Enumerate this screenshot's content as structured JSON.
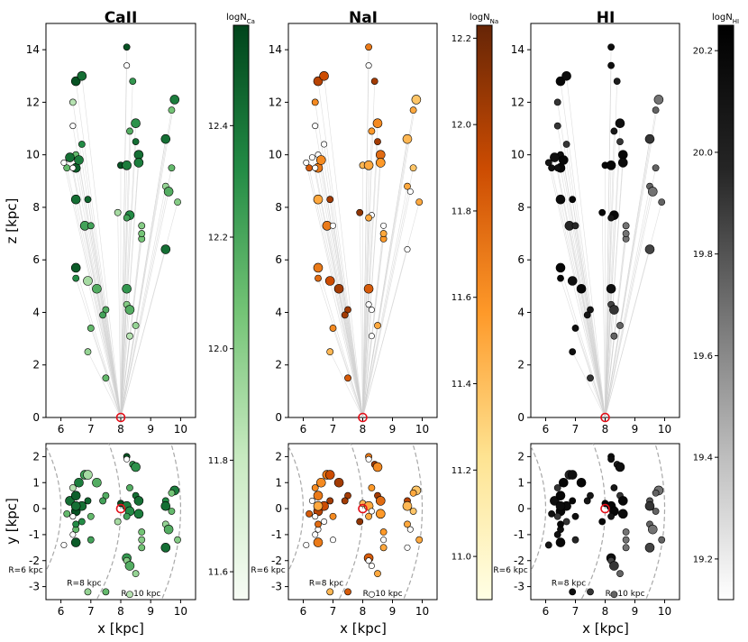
{
  "figure": {
    "x_axis_label": "x [kpc]",
    "z_axis_label": "z [kpc]",
    "y_axis_label": "y [kpc]"
  },
  "chart_data": {
    "type": "scatter",
    "panels": [
      {
        "title": "CaII",
        "colorbar_label": "logN",
        "colorbar_subscript": "Ca",
        "colorbar_range": [
          11.55,
          12.58
        ],
        "colorbar_ticks": [
          11.6,
          11.8,
          12.0,
          12.2,
          12.4
        ],
        "colormap_stops": [
          "#f7fcf5",
          "#c7e9c0",
          "#74c476",
          "#238b45",
          "#00441b"
        ]
      },
      {
        "title": "NaI",
        "colorbar_label": "logN",
        "colorbar_subscript": "Na",
        "colorbar_range": [
          10.9,
          12.23
        ],
        "colorbar_ticks": [
          11.0,
          11.2,
          11.4,
          11.6,
          11.8,
          12.0,
          12.2
        ],
        "colormap_stops": [
          "#ffffe5",
          "#fee391",
          "#fe9929",
          "#cc4c02",
          "#662506"
        ]
      },
      {
        "title": "HI",
        "colorbar_label": "logN",
        "colorbar_subscript": "HI",
        "colorbar_range": [
          19.12,
          20.25
        ],
        "colorbar_ticks": [
          19.2,
          19.4,
          19.6,
          19.8,
          20.0,
          20.2
        ],
        "colormap_stops": [
          "#ffffff",
          "#bdbdbd",
          "#737373",
          "#252525",
          "#000000"
        ]
      }
    ],
    "top_axes": {
      "x_range": [
        5.5,
        10.5
      ],
      "z_range": [
        0,
        15
      ],
      "x_ticks": [
        6,
        7,
        8,
        9,
        10
      ],
      "z_ticks": [
        0,
        2,
        4,
        6,
        8,
        10,
        12,
        14
      ]
    },
    "bottom_axes": {
      "x_range": [
        5.5,
        10.5
      ],
      "y_range": [
        -3.5,
        2.5
      ],
      "x_ticks": [
        6,
        7,
        8,
        9,
        10
      ],
      "y_ticks": [
        -3,
        -2,
        -1,
        0,
        1,
        2
      ]
    },
    "sun_position": {
      "x": 8.0,
      "y": 0.0,
      "z": 0.0
    },
    "galactocentric_rings": [
      {
        "radius_kpc": 6,
        "label": "R=6 kpc"
      },
      {
        "radius_kpc": 8,
        "label": "R=8 kpc"
      },
      {
        "radius_kpc": 10,
        "label": "R=10 kpc"
      }
    ],
    "sightlines": [
      {
        "x": 6.5,
        "y": -0.1,
        "z": 12.8,
        "ca": 0.95,
        "na": 0.8,
        "hi": 0.95,
        "s": 1
      },
      {
        "x": 6.7,
        "y": 0.1,
        "z": 13.0,
        "ca": 0.85,
        "na": 0.75,
        "hi": 0.92,
        "s": 1
      },
      {
        "x": 6.4,
        "y": 0.8,
        "z": 12.0,
        "ca": 0.3,
        "na": 0.55,
        "hi": 0.7,
        "s": 0
      },
      {
        "x": 6.4,
        "y": -0.3,
        "z": 11.1,
        "ca": -1,
        "na": -1,
        "hi": 0.7,
        "s": 0
      },
      {
        "x": 6.5,
        "y": -0.8,
        "z": 10.0,
        "ca": 0.55,
        "na": -1,
        "hi": 0.9,
        "s": 0
      },
      {
        "x": 6.7,
        "y": -0.5,
        "z": 10.4,
        "ca": 0.75,
        "na": -1,
        "hi": 0.7,
        "s": 0
      },
      {
        "x": 6.3,
        "y": 0.3,
        "z": 9.9,
        "ca": 0.85,
        "na": -1,
        "hi": 0.9,
        "s": 1
      },
      {
        "x": 6.5,
        "y": 0.5,
        "z": 9.5,
        "ca": 0.9,
        "na": 0.6,
        "hi": 0.95,
        "s": 1
      },
      {
        "x": 6.4,
        "y": -1.0,
        "z": 9.5,
        "ca": -1,
        "na": -1,
        "hi": 0.9,
        "s": 0
      },
      {
        "x": 6.2,
        "y": -0.2,
        "z": 9.5,
        "ca": 0.55,
        "na": 0.7,
        "hi": 0.9,
        "s": 0
      },
      {
        "x": 6.6,
        "y": 1.0,
        "z": 9.8,
        "ca": 0.8,
        "na": 0.55,
        "hi": 0.95,
        "s": 1
      },
      {
        "x": 6.1,
        "y": -1.4,
        "z": 9.7,
        "ca": -1,
        "na": -1,
        "hi": 0.85,
        "s": 0
      },
      {
        "x": 6.5,
        "y": 0.1,
        "z": 8.3,
        "ca": 0.85,
        "na": 0.45,
        "hi": 0.92,
        "s": 1
      },
      {
        "x": 6.9,
        "y": 0.3,
        "z": 8.3,
        "ca": 0.88,
        "na": 0.85,
        "hi": 0.95,
        "s": 0
      },
      {
        "x": 6.8,
        "y": 1.3,
        "z": 7.3,
        "ca": 0.65,
        "na": 0.6,
        "hi": 0.75,
        "s": 1
      },
      {
        "x": 7.0,
        "y": -1.2,
        "z": 7.3,
        "ca": 0.65,
        "na": -1,
        "hi": 0.75,
        "s": 0
      },
      {
        "x": 6.5,
        "y": -1.3,
        "z": 5.7,
        "ca": 0.92,
        "na": 0.6,
        "hi": 0.95,
        "s": 1
      },
      {
        "x": 6.5,
        "y": -0.6,
        "z": 5.3,
        "ca": 0.75,
        "na": 0.65,
        "hi": 0.95,
        "s": 0
      },
      {
        "x": 6.9,
        "y": 1.3,
        "z": 5.2,
        "ca": 0.35,
        "na": 0.75,
        "hi": 0.9,
        "s": 1
      },
      {
        "x": 7.2,
        "y": 1.0,
        "z": 4.9,
        "ca": 0.6,
        "na": 0.85,
        "hi": 0.95,
        "s": 1
      },
      {
        "x": 7.5,
        "y": 0.5,
        "z": 4.1,
        "ca": 0.6,
        "na": 0.85,
        "hi": 0.85,
        "s": 0
      },
      {
        "x": 7.4,
        "y": 0.3,
        "z": 3.9,
        "ca": 0.65,
        "na": 0.85,
        "hi": 0.85,
        "s": 0
      },
      {
        "x": 7.0,
        "y": -0.3,
        "z": 3.4,
        "ca": 0.55,
        "na": 0.55,
        "hi": 0.9,
        "s": 0
      },
      {
        "x": 8.2,
        "y": 2.0,
        "z": 14.1,
        "ca": 0.95,
        "na": 0.6,
        "hi": 0.9,
        "s": 0
      },
      {
        "x": 8.2,
        "y": 1.9,
        "z": 13.4,
        "ca": -1,
        "na": -1,
        "hi": 0.9,
        "s": 0
      },
      {
        "x": 8.4,
        "y": 1.7,
        "z": 12.8,
        "ca": 0.7,
        "na": 0.85,
        "hi": 0.8,
        "s": 0
      },
      {
        "x": 8.5,
        "y": 1.6,
        "z": 11.2,
        "ca": 0.72,
        "na": 0.55,
        "hi": 0.9,
        "s": 1
      },
      {
        "x": 8.3,
        "y": 0.8,
        "z": 10.9,
        "ca": 0.6,
        "na": 0.5,
        "hi": 0.85,
        "s": 0
      },
      {
        "x": 8.5,
        "y": 0.5,
        "z": 10.5,
        "ca": 0.85,
        "na": 0.85,
        "hi": 0.7,
        "s": 0
      },
      {
        "x": 8.6,
        "y": 0.3,
        "z": 10.0,
        "ca": 0.85,
        "na": 0.65,
        "hi": 0.95,
        "s": 1
      },
      {
        "x": 8.6,
        "y": -0.2,
        "z": 9.7,
        "ca": 0.8,
        "na": 0.5,
        "hi": 0.92,
        "s": 1
      },
      {
        "x": 8.0,
        "y": 0.2,
        "z": 9.6,
        "ca": 0.95,
        "na": 0.4,
        "hi": 0.95,
        "s": 0
      },
      {
        "x": 8.2,
        "y": 0.1,
        "z": 9.6,
        "ca": 0.8,
        "na": 0.45,
        "hi": 0.95,
        "s": 1
      },
      {
        "x": 8.3,
        "y": -0.1,
        "z": 7.7,
        "ca": 0.75,
        "na": -1,
        "hi": 0.95,
        "s": 1
      },
      {
        "x": 8.2,
        "y": -0.3,
        "z": 7.6,
        "ca": 0.65,
        "na": 0.45,
        "hi": 0.85,
        "s": 0
      },
      {
        "x": 7.9,
        "y": -0.5,
        "z": 7.8,
        "ca": 0.35,
        "na": 0.9,
        "hi": 0.95,
        "s": 0
      },
      {
        "x": 8.7,
        "y": -1.2,
        "z": 7.3,
        "ca": 0.45,
        "na": -1,
        "hi": 0.5,
        "s": 0
      },
      {
        "x": 8.7,
        "y": -0.9,
        "z": 6.8,
        "ca": 0.5,
        "na": 0.5,
        "hi": 0.5,
        "s": 0
      },
      {
        "x": 8.7,
        "y": -1.5,
        "z": 7.0,
        "ca": 0.5,
        "na": 0.45,
        "hi": 0.5,
        "s": 0
      },
      {
        "x": 8.2,
        "y": -1.9,
        "z": 4.9,
        "ca": 0.7,
        "na": 0.7,
        "hi": 0.9,
        "s": 1
      },
      {
        "x": 8.2,
        "y": -2.0,
        "z": 4.3,
        "ca": 0.45,
        "na": -1,
        "hi": 0.65,
        "s": 0
      },
      {
        "x": 8.3,
        "y": -2.2,
        "z": 4.1,
        "ca": 0.6,
        "na": -1,
        "hi": 0.7,
        "s": 1
      },
      {
        "x": 8.5,
        "y": -2.5,
        "z": 3.5,
        "ca": 0.4,
        "na": 0.45,
        "hi": 0.55,
        "s": 0
      },
      {
        "x": 8.3,
        "y": -3.3,
        "z": 3.1,
        "ca": 0.3,
        "na": -1,
        "hi": 0.55,
        "s": 0
      },
      {
        "x": 9.8,
        "y": 0.7,
        "z": 12.1,
        "ca": 0.8,
        "na": 0.35,
        "hi": 0.5,
        "s": 1
      },
      {
        "x": 9.7,
        "y": 0.6,
        "z": 11.7,
        "ca": 0.5,
        "na": 0.45,
        "hi": 0.55,
        "s": 0
      },
      {
        "x": 9.5,
        "y": 0.3,
        "z": 10.6,
        "ca": 0.75,
        "na": 0.8,
        "hi": 0.6,
        "s": 0
      },
      {
        "x": 9.5,
        "y": 0.1,
        "z": 10.6,
        "ca": 0.85,
        "na": 0.4,
        "hi": 0.7,
        "s": 1
      },
      {
        "x": 9.7,
        "y": -0.1,
        "z": 9.5,
        "ca": 0.55,
        "na": 0.35,
        "hi": 0.55,
        "s": 0
      },
      {
        "x": 9.5,
        "y": -0.6,
        "z": 8.8,
        "ca": 0.4,
        "na": 0.45,
        "hi": 0.55,
        "s": 0
      },
      {
        "x": 9.6,
        "y": -0.8,
        "z": 8.6,
        "ca": 0.6,
        "na": -1,
        "hi": 0.5,
        "s": 1
      },
      {
        "x": 9.9,
        "y": -1.2,
        "z": 8.2,
        "ca": 0.45,
        "na": 0.45,
        "hi": 0.55,
        "s": 0
      },
      {
        "x": 9.5,
        "y": -1.5,
        "z": 6.4,
        "ca": 0.85,
        "na": -1,
        "hi": 0.65,
        "s": 1
      },
      {
        "x": 6.9,
        "y": -3.2,
        "z": 2.5,
        "ca": 0.4,
        "na": 0.4,
        "hi": 0.9,
        "s": 0
      },
      {
        "x": 7.5,
        "y": -3.2,
        "z": 1.5,
        "ca": 0.55,
        "na": 0.7,
        "hi": 0.7,
        "s": 0
      }
    ]
  }
}
